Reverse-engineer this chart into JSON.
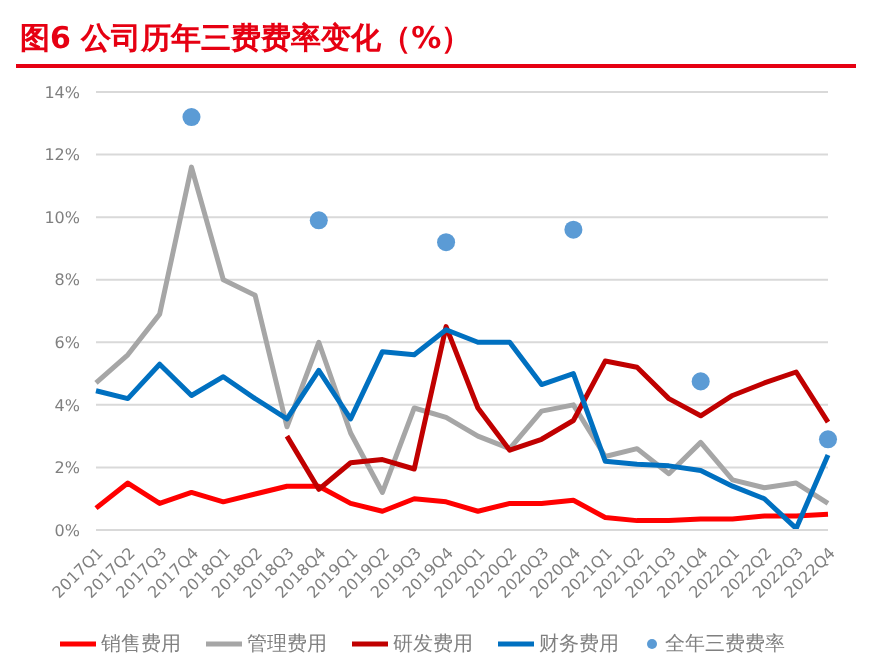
{
  "chart_data": {
    "type": "line",
    "title": "图6 公司历年三费费率变化（%）",
    "categories": [
      "2017Q1",
      "2017Q2",
      "2017Q3",
      "2017Q4",
      "2018Q1",
      "2018Q2",
      "2018Q3",
      "2018Q4",
      "2019Q1",
      "2019Q2",
      "2019Q3",
      "2019Q4",
      "2020Q1",
      "2020Q2",
      "2020Q3",
      "2020Q4",
      "2021Q1",
      "2021Q2",
      "2021Q3",
      "2021Q4",
      "2022Q1",
      "2022Q2",
      "2022Q3",
      "2022Q4"
    ],
    "series": [
      {
        "name": "销售费用",
        "color": "#ff0000",
        "values": [
          0.7,
          1.5,
          0.85,
          1.2,
          0.9,
          1.15,
          1.4,
          1.4,
          0.85,
          0.6,
          1.0,
          0.9,
          0.6,
          0.85,
          0.85,
          0.95,
          0.4,
          0.3,
          0.3,
          0.35,
          0.35,
          0.45,
          0.45,
          0.5
        ]
      },
      {
        "name": "管理费用",
        "color": "#a6a6a6",
        "values": [
          4.7,
          5.6,
          6.9,
          11.6,
          8.0,
          7.5,
          3.3,
          6.0,
          3.1,
          1.2,
          3.9,
          3.6,
          3.0,
          2.6,
          3.8,
          4.0,
          2.35,
          2.6,
          1.8,
          2.8,
          1.6,
          1.35,
          1.5,
          0.85
        ]
      },
      {
        "name": "研发费用",
        "color": "#c00000",
        "values": [
          null,
          null,
          null,
          null,
          null,
          null,
          3.0,
          1.3,
          2.15,
          2.25,
          1.95,
          6.5,
          3.9,
          2.55,
          2.9,
          3.5,
          5.4,
          5.2,
          4.2,
          3.65,
          4.3,
          4.7,
          5.05,
          3.45
        ]
      },
      {
        "name": "财务费用",
        "color": "#0070c0",
        "values": [
          4.45,
          4.2,
          5.3,
          4.3,
          4.9,
          4.2,
          3.55,
          5.1,
          3.55,
          5.7,
          5.6,
          6.4,
          6.0,
          6.0,
          4.65,
          5.0,
          2.2,
          2.1,
          2.05,
          1.9,
          1.4,
          1.0,
          0.05,
          2.4
        ]
      },
      {
        "name": "全年三费费率",
        "type": "scatter",
        "color": "#5b9bd5",
        "marker": "circle",
        "values": [
          null,
          null,
          null,
          13.2,
          null,
          null,
          null,
          9.9,
          null,
          null,
          null,
          9.2,
          null,
          null,
          null,
          9.6,
          null,
          null,
          null,
          4.75,
          null,
          null,
          null,
          2.9
        ]
      }
    ],
    "ylim": [
      0,
      14
    ],
    "yticks": [
      {
        "value": 0,
        "label": "0%"
      },
      {
        "value": 2,
        "label": "2%"
      },
      {
        "value": 4,
        "label": "4%"
      },
      {
        "value": 6,
        "label": "6%"
      },
      {
        "value": 8,
        "label": "8%"
      },
      {
        "value": 10,
        "label": "10%"
      },
      {
        "value": 12,
        "label": "12%"
      },
      {
        "value": 14,
        "label": "14%"
      }
    ],
    "grid": "y",
    "legend": "bottom",
    "marker": "none",
    "line_style": "solid"
  }
}
